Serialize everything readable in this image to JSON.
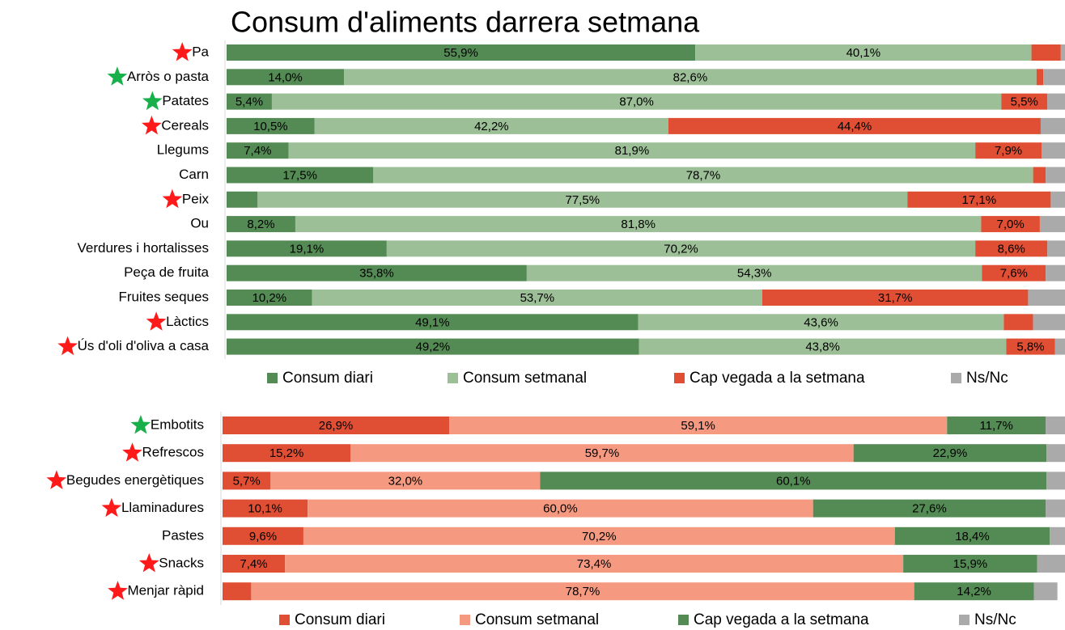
{
  "chart_data": [
    {
      "type": "stacked_bar",
      "title": "Consum d'aliments darrera setmana",
      "categories": [
        "Pa",
        "Arròs o pasta",
        "Patates",
        "Cereals",
        "Llegums",
        "Carn",
        "Peix",
        "Ou",
        "Verdures i hortalisses",
        "Peça de fruita",
        "Fruites seques",
        "Làctics",
        "Ús d'oli d'oliva a casa"
      ],
      "stars": [
        "red",
        "green",
        "green",
        "red",
        null,
        null,
        "red",
        null,
        null,
        null,
        null,
        "red",
        "red"
      ],
      "xlim": [
        0,
        100
      ],
      "series": [
        {
          "name": "Consum diari",
          "color": "#548b54",
          "values": [
            55.9,
            14.0,
            5.4,
            10.5,
            7.4,
            17.5,
            3.7,
            8.2,
            19.1,
            35.8,
            10.2,
            49.1,
            49.2
          ],
          "value_labels": [
            "55,9%",
            "14,0%",
            "5,4%",
            "10,5%",
            "7,4%",
            "17,5%",
            null,
            "8,2%",
            "19,1%",
            "35,8%",
            "10,2%",
            "49,1%",
            "49,2%"
          ]
        },
        {
          "name": "Consum setmanal",
          "color": "#9dbf97",
          "values": [
            40.1,
            82.6,
            87.0,
            42.2,
            81.9,
            78.7,
            77.5,
            81.8,
            70.2,
            54.3,
            53.7,
            43.6,
            43.8
          ],
          "value_labels": [
            "40,1%",
            "82,6%",
            "87,0%",
            "42,2%",
            "81,9%",
            "78,7%",
            "77,5%",
            "81,8%",
            "70,2%",
            "54,3%",
            "53,7%",
            "43,6%",
            "43,8%"
          ]
        },
        {
          "name": "Cap vegada a la setmana",
          "color": "#e04f34",
          "values": [
            3.5,
            0.8,
            5.5,
            44.4,
            7.9,
            1.5,
            17.1,
            7.0,
            8.6,
            7.6,
            31.7,
            3.5,
            5.8
          ],
          "value_labels": [
            null,
            null,
            "5,5%",
            "44,4%",
            "7,9%",
            null,
            "17,1%",
            "7,0%",
            "8,6%",
            "7,6%",
            "31,7%",
            null,
            "5,8%"
          ]
        },
        {
          "name": "Ns/Nc",
          "color": "#aaaaaa",
          "values": [
            0.5,
            2.6,
            2.1,
            2.9,
            2.8,
            2.3,
            1.7,
            3.0,
            2.1,
            2.3,
            4.4,
            3.8,
            1.2
          ]
        }
      ]
    },
    {
      "type": "stacked_bar",
      "categories": [
        "Embotits",
        "Refrescos",
        "Begudes energètiques",
        "Llaminadures",
        "Pastes",
        "Snacks",
        "Menjar ràpid"
      ],
      "stars": [
        "green",
        "red",
        "red",
        "red",
        null,
        "red",
        "red"
      ],
      "xlim": [
        0,
        100
      ],
      "series": [
        {
          "name": "Consum diari",
          "color": "#e04f34",
          "values": [
            26.9,
            15.2,
            5.7,
            10.1,
            9.6,
            7.4,
            3.4
          ],
          "value_labels": [
            "26,9%",
            "15,2%",
            "5,7%",
            "10,1%",
            "9,6%",
            "7,4%",
            null
          ]
        },
        {
          "name": "Consum setmanal",
          "color": "#f59a80",
          "values": [
            59.1,
            59.7,
            32.0,
            60.0,
            70.2,
            73.4,
            78.7
          ],
          "value_labels": [
            "59,1%",
            "59,7%",
            "32,0%",
            "60,0%",
            "70,2%",
            "73,4%",
            "78,7%"
          ]
        },
        {
          "name": "Cap vegada a la setmana",
          "color": "#548b54",
          "values": [
            11.7,
            22.9,
            60.1,
            27.6,
            18.4,
            15.9,
            14.2
          ],
          "value_labels": [
            "11,7%",
            "22,9%",
            "60,1%",
            "27,6%",
            "18,4%",
            "15,9%",
            "14,2%"
          ]
        },
        {
          "name": "Ns/Nc",
          "color": "#aaaaaa",
          "values": [
            2.3,
            2.2,
            2.2,
            2.3,
            1.8,
            3.3,
            2.8
          ]
        }
      ]
    }
  ]
}
